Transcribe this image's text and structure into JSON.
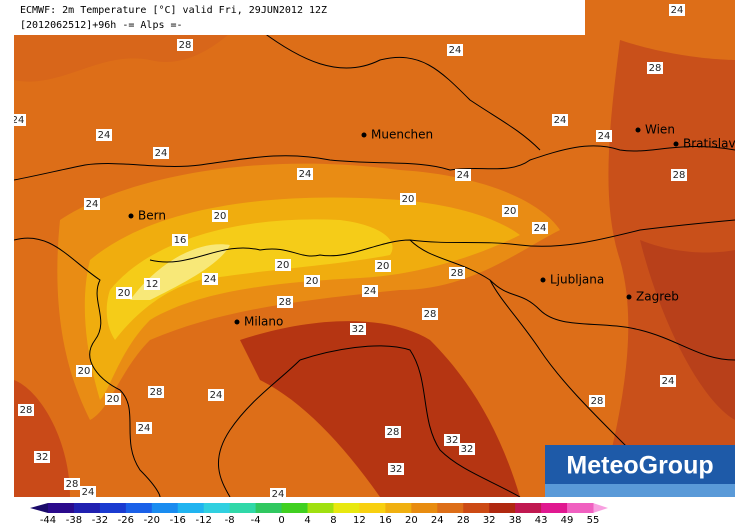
{
  "header": {
    "line1": "ECMWF: 2m Temperature [°C] valid Fri, 29JUN2012 12Z",
    "line2": "[2012062512]+96h -= Alps =-"
  },
  "cities": [
    "Muenchen",
    "Wien",
    "Bratislava",
    "Bern",
    "Ljubljana",
    "Zagreb",
    "Milano"
  ],
  "contour_labels": [
    "24",
    "28",
    "24",
    "28",
    "24",
    "24",
    "24",
    "24",
    "24",
    "24",
    "24",
    "28",
    "24",
    "20",
    "20",
    "20",
    "24",
    "16",
    "20",
    "20",
    "28",
    "24",
    "12",
    "20",
    "24",
    "20",
    "28",
    "28",
    "32",
    "20",
    "24",
    "28",
    "24",
    "20",
    "28",
    "28",
    "24",
    "28",
    "32",
    "32",
    "32",
    "32",
    "28",
    "24",
    "24"
  ],
  "colorbar": {
    "labels": [
      "-44",
      "-38",
      "-32",
      "-26",
      "-20",
      "-16",
      "-12",
      "-8",
      "-4",
      "0",
      "4",
      "8",
      "12",
      "16",
      "20",
      "24",
      "28",
      "32",
      "38",
      "43",
      "49",
      "55"
    ]
  },
  "logo": "MeteoGroup"
}
